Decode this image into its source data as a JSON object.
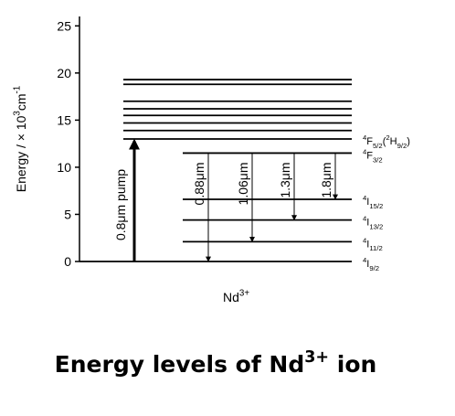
{
  "chart_data": {
    "type": "energy-levels",
    "title": [
      {
        "t": "Energy levels of Nd"
      },
      {
        "t": "3+",
        "s": "sup"
      },
      {
        "t": " ion"
      }
    ],
    "x_label": [
      {
        "t": "Nd"
      },
      {
        "t": "3+",
        "s": "sup"
      }
    ],
    "y_label": [
      {
        "t": "Energy / × 10"
      },
      {
        "t": "3",
        "s": "sup"
      },
      {
        "t": "cm"
      },
      {
        "t": "-1",
        "s": "sup"
      }
    ],
    "ylim": [
      0,
      26
    ],
    "yticks": [
      0,
      5,
      10,
      15,
      20,
      25
    ],
    "color": "#000000",
    "levels": [
      {
        "energy": 19.3
      },
      {
        "energy": 18.8
      },
      {
        "energy": 17.0
      },
      {
        "energy": 16.2
      },
      {
        "energy": 15.5
      },
      {
        "energy": 14.7
      },
      {
        "energy": 13.9
      },
      {
        "energy": 13.0,
        "label": [
          {
            "t": "4",
            "s": "sup"
          },
          {
            "t": "F"
          },
          {
            "t": "5/2",
            "s": "sub"
          },
          {
            "t": "("
          },
          {
            "t": "2",
            "s": "sup"
          },
          {
            "t": "H"
          },
          {
            "t": "9/2",
            "s": "sub"
          },
          {
            "t": ")"
          }
        ]
      },
      {
        "energy": 11.5,
        "label": [
          {
            "t": "4",
            "s": "sup"
          },
          {
            "t": "F"
          },
          {
            "t": "3/2",
            "s": "sub"
          }
        ]
      },
      {
        "energy": 6.6,
        "label": [
          {
            "t": "4",
            "s": "sup"
          },
          {
            "t": "I"
          },
          {
            "t": "15/2",
            "s": "sub"
          }
        ]
      },
      {
        "energy": 4.4,
        "label": [
          {
            "t": "4",
            "s": "sup"
          },
          {
            "t": "I"
          },
          {
            "t": "13/2",
            "s": "sub"
          }
        ]
      },
      {
        "energy": 2.1,
        "label": [
          {
            "t": "4",
            "s": "sup"
          },
          {
            "t": "I"
          },
          {
            "t": "11/2",
            "s": "sub"
          }
        ]
      },
      {
        "energy": 0,
        "label": [
          {
            "t": "4",
            "s": "sup"
          },
          {
            "t": "I"
          },
          {
            "t": "9/2",
            "s": "sub"
          }
        ]
      }
    ],
    "pump": {
      "label": "0.8μm pump",
      "from": 0,
      "to": 13.0
    },
    "transitions": [
      {
        "label": "0.88μm",
        "from": 11.5,
        "to": 0
      },
      {
        "label": "1.06μm",
        "from": 11.5,
        "to": 2.1
      },
      {
        "label": "1.3μm",
        "from": 11.5,
        "to": 4.4
      },
      {
        "label": "1.8μm",
        "from": 11.5,
        "to": 6.6
      }
    ]
  }
}
